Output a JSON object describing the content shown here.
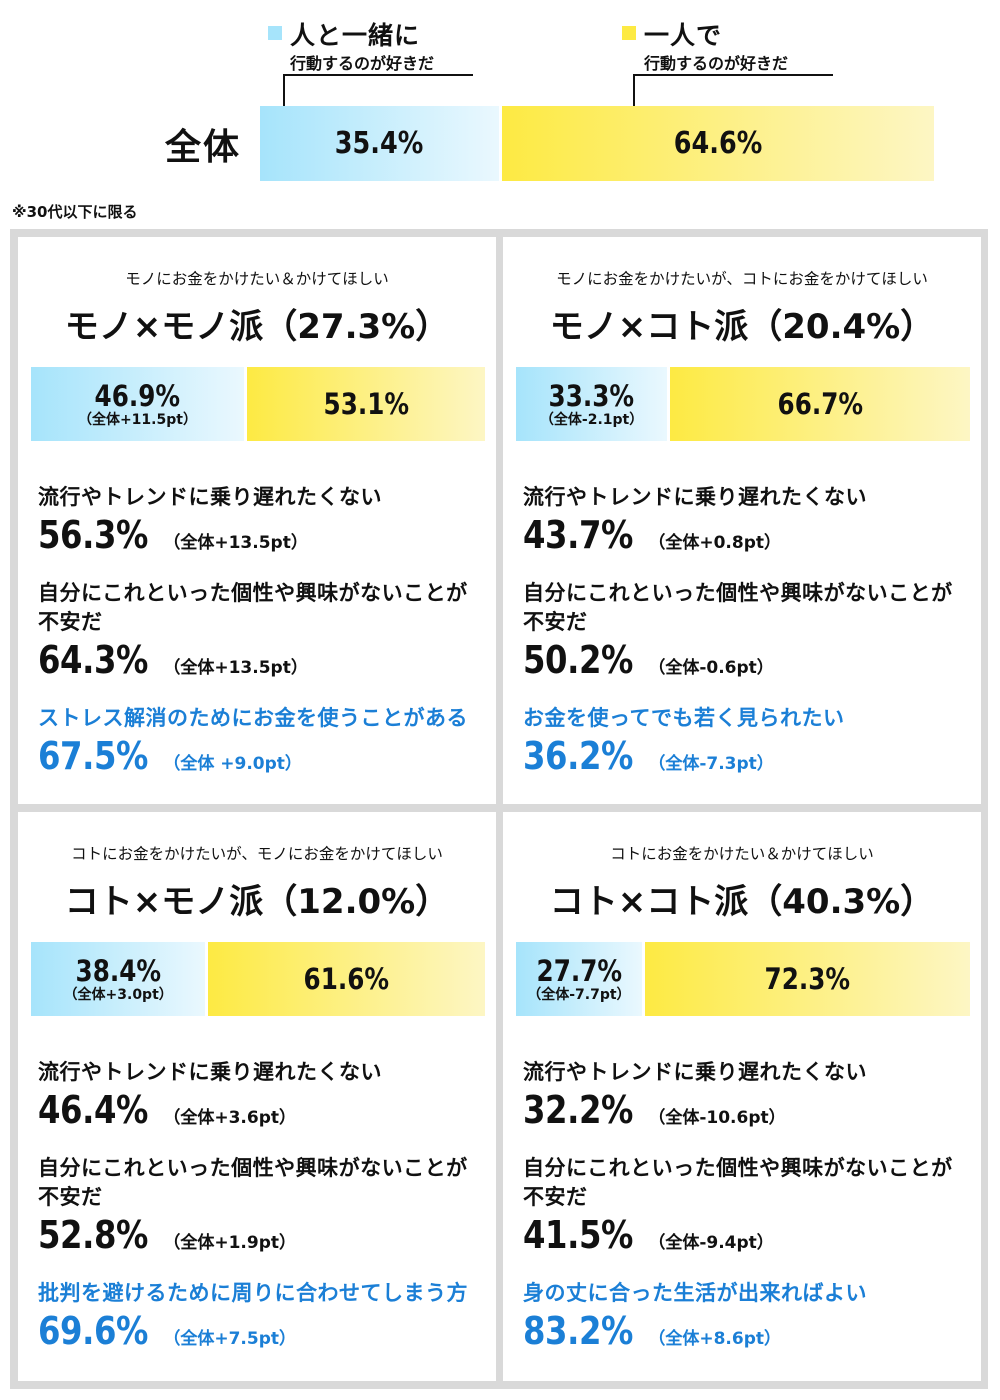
{
  "legend": {
    "together": {
      "line1": "人と一緒に",
      "line2": "行動するのが好きだ",
      "color": "#a6e4fb"
    },
    "alone": {
      "line1": "一人で",
      "line2": "行動するのが好きだ",
      "color": "#fdea43"
    }
  },
  "overall": {
    "label": "全体",
    "together_label": "35.4%",
    "alone_label": "64.6%"
  },
  "note": "※30代以下に限る",
  "panels": [
    {
      "subtitle": "モノにお金をかけたい＆かけてほしい",
      "title": "モノ×モノ派（27.3%）",
      "bar": {
        "together": "46.9%",
        "together_diff": "（全体+11.5pt）",
        "alone": "53.1%"
      },
      "stats": [
        {
          "label": "流行やトレンドに乗り遅れたくない",
          "value": "56.3%",
          "diff": "（全体+13.5pt）"
        },
        {
          "label": "自分にこれといった個性や興味がないことが不安だ",
          "value": "64.3%",
          "diff": "（全体+13.5pt）"
        },
        {
          "label": "ストレス解消のためにお金を使うことがある",
          "value": "67.5%",
          "diff": "（全体 +9.0pt）"
        }
      ]
    },
    {
      "subtitle": "モノにお金をかけたいが、コトにお金をかけてほしい",
      "title": "モノ×コト派（20.4%）",
      "bar": {
        "together": "33.3%",
        "together_diff": "（全体-2.1pt）",
        "alone": "66.7%"
      },
      "stats": [
        {
          "label": "流行やトレンドに乗り遅れたくない",
          "value": "43.7%",
          "diff": "（全体+0.8pt）"
        },
        {
          "label": "自分にこれといった個性や興味がないことが不安だ",
          "value": "50.2%",
          "diff": "（全体-0.6pt）"
        },
        {
          "label": "お金を使ってでも若く見られたい",
          "value": "36.2%",
          "diff": "（全体-7.3pt）"
        }
      ]
    },
    {
      "subtitle": "コトにお金をかけたいが、モノにお金をかけてほしい",
      "title": "コト×モノ派（12.0%）",
      "bar": {
        "together": "38.4%",
        "together_diff": "（全体+3.0pt）",
        "alone": "61.6%"
      },
      "stats": [
        {
          "label": "流行やトレンドに乗り遅れたくない",
          "value": "46.4%",
          "diff": "（全体+3.6pt）"
        },
        {
          "label": "自分にこれといった個性や興味がないことが不安だ",
          "value": "52.8%",
          "diff": "（全体+1.9pt）"
        },
        {
          "label": "批判を避けるために周りに合わせてしまう方",
          "value": "69.6%",
          "diff": "（全体+7.5pt）"
        }
      ]
    },
    {
      "subtitle": "コトにお金をかけたい＆かけてほしい",
      "title": "コト×コト派（40.3%）",
      "bar": {
        "together": "27.7%",
        "together_diff": "（全体-7.7pt）",
        "alone": "72.3%"
      },
      "stats": [
        {
          "label": "流行やトレンドに乗り遅れたくない",
          "value": "32.2%",
          "diff": "（全体-10.6pt）"
        },
        {
          "label": "自分にこれといった個性や興味がないことが不安だ",
          "value": "41.5%",
          "diff": "（全体-9.4pt）"
        },
        {
          "label": "身の丈に合った生活が出来ればよい",
          "value": "83.2%",
          "diff": "（全体+8.6pt）"
        }
      ]
    }
  ],
  "chart_data": {
    "type": "bar",
    "orientation": "horizontal-stacked-100",
    "title": "人と一緒に／一人で 行動するのが好きだ",
    "categories": [
      "全体",
      "モノ×モノ派",
      "モノ×コト派",
      "コト×モノ派",
      "コト×コト派"
    ],
    "series": [
      {
        "name": "人と一緒に行動するのが好きだ",
        "values": [
          35.4,
          46.9,
          33.3,
          38.4,
          27.7
        ]
      },
      {
        "name": "一人で行動するのが好きだ",
        "values": [
          64.6,
          53.1,
          66.7,
          61.6,
          72.3
        ]
      }
    ],
    "xlim": [
      0,
      100
    ]
  }
}
